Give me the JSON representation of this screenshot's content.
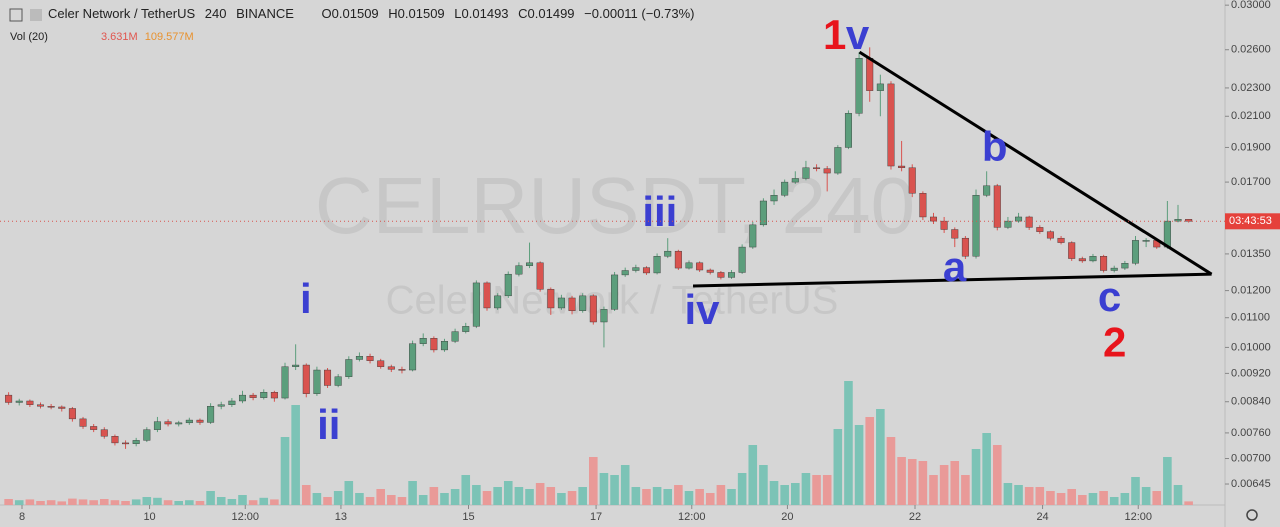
{
  "chart_data": {
    "type": "candlestick",
    "title": "Celer Network / TetherUS",
    "interval": 240,
    "exchange": "BINANCE",
    "change": "−0.00011 (−0.73%)",
    "volume_title": "Vol (20)",
    "volume_value": "3.631M",
    "volume_ma": "109.577M",
    "watermark": "CELRUSDT, 240",
    "watermark_subtitle": "Celer Network / TetherUS",
    "countdown": "03:43:53",
    "ohlc_labels": [
      "O",
      "H",
      "L",
      "C"
    ],
    "log_scale": true,
    "grid": false,
    "up_color": "#5c9e7c",
    "down_color": "#d9534f",
    "volume_up_color": "#7cc3b6",
    "volume_down_color": "#e99a98",
    "x_start": 7.79,
    "xlim": [
      7.655,
      26.86
    ],
    "xticks": [
      8,
      10,
      {
        "value": 11.5,
        "label": "12:00"
      },
      13,
      15,
      17,
      {
        "value": 18.5,
        "label": "12:00"
      },
      20,
      22,
      24,
      {
        "value": 25.5,
        "label": "12:00"
      }
    ],
    "ylim": [
      0.00603,
      0.0305
    ],
    "yticks": [
      {
        "value": 0.03,
        "label": "0.03000"
      },
      {
        "value": 0.026,
        "label": "0.02600"
      },
      {
        "value": 0.023,
        "label": "0.02300"
      },
      {
        "value": 0.021,
        "label": "0.02100"
      },
      {
        "value": 0.019,
        "label": "0.01900"
      },
      {
        "value": 0.017,
        "label": "0.01700"
      },
      {
        "value": 0.0135,
        "label": "0.01350"
      },
      {
        "value": 0.012,
        "label": "0.01200"
      },
      {
        "value": 0.011,
        "label": "0.01100"
      },
      {
        "value": 0.01,
        "label": "0.01000"
      },
      {
        "value": 0.0092,
        "label": "0.00920"
      },
      {
        "value": 0.0084,
        "label": "0.00840"
      },
      {
        "value": 0.0076,
        "label": "0.00760"
      },
      {
        "value": 0.007,
        "label": "0.00700"
      },
      {
        "value": 0.00645,
        "label": "0.00645"
      }
    ],
    "y2lim": [
      0,
      400
    ],
    "ohlc": [
      [
        0.00858,
        0.00866,
        0.00832,
        0.00838
      ],
      [
        0.00838,
        0.00848,
        0.0083,
        0.00842
      ],
      [
        0.00842,
        0.00846,
        0.00826,
        0.00832
      ],
      [
        0.00832,
        0.00838,
        0.00822,
        0.00828
      ],
      [
        0.00828,
        0.00834,
        0.0082,
        0.00826
      ],
      [
        0.00826,
        0.0083,
        0.00814,
        0.00822
      ],
      [
        0.00822,
        0.00826,
        0.00788,
        0.00795
      ],
      [
        0.00795,
        0.008,
        0.0077,
        0.00776
      ],
      [
        0.00776,
        0.00782,
        0.00762,
        0.00768
      ],
      [
        0.00768,
        0.00774,
        0.00746,
        0.00752
      ],
      [
        0.00752,
        0.00756,
        0.0073,
        0.00736
      ],
      [
        0.00736,
        0.00742,
        0.00722,
        0.00734
      ],
      [
        0.00734,
        0.00748,
        0.00728,
        0.00742
      ],
      [
        0.00742,
        0.00774,
        0.00738,
        0.00768
      ],
      [
        0.00768,
        0.008,
        0.00762,
        0.00788
      ],
      [
        0.00788,
        0.00794,
        0.00776,
        0.00782
      ],
      [
        0.00782,
        0.0079,
        0.00776,
        0.00785
      ],
      [
        0.00785,
        0.00798,
        0.0078,
        0.00792
      ],
      [
        0.00792,
        0.00796,
        0.0078,
        0.00786
      ],
      [
        0.00786,
        0.00836,
        0.00782,
        0.00828
      ],
      [
        0.00828,
        0.0084,
        0.0082,
        0.00832
      ],
      [
        0.00832,
        0.0085,
        0.00826,
        0.00842
      ],
      [
        0.00842,
        0.0087,
        0.00836,
        0.00858
      ],
      [
        0.00858,
        0.00864,
        0.00844,
        0.00851
      ],
      [
        0.00851,
        0.00874,
        0.00846,
        0.00866
      ],
      [
        0.00866,
        0.0087,
        0.0084,
        0.0085
      ],
      [
        0.0085,
        0.00952,
        0.00846,
        0.0094
      ],
      [
        0.0094,
        0.0101,
        0.0093,
        0.00945
      ],
      [
        0.00945,
        0.0095,
        0.00852,
        0.00862
      ],
      [
        0.00862,
        0.0094,
        0.00856,
        0.0093
      ],
      [
        0.0093,
        0.00936,
        0.00878,
        0.00885
      ],
      [
        0.00885,
        0.00918,
        0.0088,
        0.0091
      ],
      [
        0.0091,
        0.00972,
        0.00904,
        0.00962
      ],
      [
        0.00962,
        0.00984,
        0.00956,
        0.00972
      ],
      [
        0.00972,
        0.0098,
        0.0095,
        0.00958
      ],
      [
        0.00958,
        0.00964,
        0.00934,
        0.0094
      ],
      [
        0.0094,
        0.00946,
        0.00924,
        0.00932
      ],
      [
        0.00932,
        0.0094,
        0.0092,
        0.0093
      ],
      [
        0.0093,
        0.01022,
        0.00926,
        0.01012
      ],
      [
        0.01012,
        0.01046,
        0.01004,
        0.0103
      ],
      [
        0.0103,
        0.01036,
        0.00984,
        0.00992
      ],
      [
        0.00992,
        0.01028,
        0.00986,
        0.0102
      ],
      [
        0.0102,
        0.01062,
        0.01014,
        0.01052
      ],
      [
        0.01052,
        0.01082,
        0.01046,
        0.0107
      ],
      [
        0.0107,
        0.0124,
        0.01064,
        0.0123
      ],
      [
        0.0123,
        0.01236,
        0.01125,
        0.01135
      ],
      [
        0.01135,
        0.0119,
        0.01128,
        0.0118
      ],
      [
        0.0118,
        0.01276,
        0.01172,
        0.01265
      ],
      [
        0.01265,
        0.01314,
        0.01256,
        0.013
      ],
      [
        0.013,
        0.014,
        0.0129,
        0.01312
      ],
      [
        0.01312,
        0.01318,
        0.01196,
        0.01205
      ],
      [
        0.01205,
        0.01212,
        0.0111,
        0.01135
      ],
      [
        0.01135,
        0.01184,
        0.01128,
        0.01172
      ],
      [
        0.01172,
        0.0118,
        0.01112,
        0.01125
      ],
      [
        0.01125,
        0.0119,
        0.01118,
        0.0118
      ],
      [
        0.0118,
        0.01186,
        0.01076,
        0.01085
      ],
      [
        0.01085,
        0.0114,
        0.01,
        0.0113
      ],
      [
        0.0113,
        0.01274,
        0.01124,
        0.01262
      ],
      [
        0.01262,
        0.01292,
        0.01254,
        0.0128
      ],
      [
        0.0128,
        0.01304,
        0.01272,
        0.01292
      ],
      [
        0.01292,
        0.01298,
        0.01262,
        0.0127
      ],
      [
        0.0127,
        0.01352,
        0.01264,
        0.0134
      ],
      [
        0.0134,
        0.0142,
        0.01332,
        0.01362
      ],
      [
        0.01362,
        0.01368,
        0.01282,
        0.0129
      ],
      [
        0.0129,
        0.01322,
        0.01284,
        0.01312
      ],
      [
        0.01312,
        0.01318,
        0.01274,
        0.01282
      ],
      [
        0.01282,
        0.01288,
        0.01264,
        0.01272
      ],
      [
        0.01272,
        0.01278,
        0.01244,
        0.01252
      ],
      [
        0.01252,
        0.01282,
        0.01246,
        0.01272
      ],
      [
        0.01272,
        0.01392,
        0.01266,
        0.0138
      ],
      [
        0.0138,
        0.01496,
        0.01372,
        0.01482
      ],
      [
        0.01482,
        0.01614,
        0.01474,
        0.016
      ],
      [
        0.016,
        0.0166,
        0.0158,
        0.0163
      ],
      [
        0.0163,
        0.01714,
        0.0162,
        0.017
      ],
      [
        0.017,
        0.0176,
        0.0169,
        0.0172
      ],
      [
        0.0172,
        0.0182,
        0.0171,
        0.0178
      ],
      [
        0.0178,
        0.018,
        0.0176,
        0.01775
      ],
      [
        0.01775,
        0.0179,
        0.0165,
        0.0175
      ],
      [
        0.0175,
        0.01914,
        0.0174,
        0.019
      ],
      [
        0.019,
        0.0214,
        0.0189,
        0.0212
      ],
      [
        0.0212,
        0.0258,
        0.021,
        0.0253
      ],
      [
        0.0253,
        0.0262,
        0.022,
        0.0228
      ],
      [
        0.0228,
        0.024,
        0.021,
        0.0233
      ],
      [
        0.0233,
        0.0235,
        0.0177,
        0.0179
      ],
      [
        0.0179,
        0.0194,
        0.0176,
        0.0178
      ],
      [
        0.0178,
        0.018,
        0.0162,
        0.0164
      ],
      [
        0.0164,
        0.0165,
        0.01505,
        0.0152
      ],
      [
        0.0152,
        0.0154,
        0.01486,
        0.015
      ],
      [
        0.015,
        0.0152,
        0.01444,
        0.0146
      ],
      [
        0.0146,
        0.0147,
        0.0138,
        0.0142
      ],
      [
        0.0142,
        0.0143,
        0.01328,
        0.0134
      ],
      [
        0.0134,
        0.0166,
        0.0133,
        0.0163
      ],
      [
        0.0163,
        0.0176,
        0.0162,
        0.0168
      ],
      [
        0.0168,
        0.0169,
        0.01456,
        0.0147
      ],
      [
        0.0147,
        0.0152,
        0.01462,
        0.015
      ],
      [
        0.015,
        0.0154,
        0.01492,
        0.0152
      ],
      [
        0.0152,
        0.01526,
        0.01458,
        0.0147
      ],
      [
        0.0147,
        0.0148,
        0.0144,
        0.0145
      ],
      [
        0.0145,
        0.01456,
        0.0141,
        0.0142
      ],
      [
        0.0142,
        0.0143,
        0.01392,
        0.014
      ],
      [
        0.014,
        0.01406,
        0.0132,
        0.0133
      ],
      [
        0.0133,
        0.01338,
        0.01312,
        0.0132
      ],
      [
        0.0132,
        0.0135,
        0.01314,
        0.0134
      ],
      [
        0.0134,
        0.01346,
        0.01272,
        0.0128
      ],
      [
        0.0128,
        0.013,
        0.01272,
        0.0129
      ],
      [
        0.0129,
        0.0132,
        0.01282,
        0.0131
      ],
      [
        0.0131,
        0.0143,
        0.01302,
        0.0141
      ],
      [
        0.0141,
        0.0142,
        0.0138,
        0.0141
      ],
      [
        0.0141,
        0.01416,
        0.01372,
        0.0138
      ],
      [
        0.0138,
        0.016,
        0.01372,
        0.015
      ],
      [
        0.015,
        0.0158,
        0.01494,
        0.01509
      ],
      [
        0.01509,
        0.01509,
        0.01493,
        0.01499
      ]
    ],
    "volume": [
      15,
      12,
      14,
      10,
      12,
      9,
      16,
      14,
      12,
      15,
      12,
      10,
      14,
      20,
      18,
      12,
      10,
      12,
      10,
      35,
      20,
      15,
      25,
      12,
      18,
      14,
      170,
      250,
      50,
      30,
      20,
      35,
      60,
      30,
      20,
      40,
      25,
      20,
      60,
      25,
      45,
      30,
      40,
      75,
      50,
      35,
      45,
      60,
      45,
      40,
      55,
      45,
      30,
      35,
      45,
      120,
      80,
      75,
      100,
      45,
      40,
      45,
      40,
      50,
      35,
      40,
      30,
      50,
      40,
      80,
      150,
      100,
      60,
      50,
      55,
      80,
      75,
      75,
      190,
      310,
      200,
      220,
      240,
      170,
      120,
      115,
      110,
      75,
      100,
      110,
      75,
      140,
      180,
      150,
      55,
      50,
      45,
      45,
      35,
      30,
      40,
      25,
      30,
      35,
      20,
      30,
      70,
      45,
      35,
      120,
      50,
      9
    ],
    "trendlines": [
      {
        "x": [
          21.13,
          26.65
        ],
        "y": [
          0.0258,
          0.01265
        ],
        "color": "#000000"
      },
      {
        "x": [
          18.52,
          26.65
        ],
        "y": [
          0.01218,
          0.01265
        ],
        "color": "#000000"
      }
    ],
    "annotations": [
      {
        "text": "1",
        "x": 20.74,
        "y": 0.02699,
        "color": "#e8141c"
      },
      {
        "text": "v",
        "x": 21.1,
        "y": 0.02699,
        "color": "#3b3fd1"
      },
      {
        "text": "i",
        "x": 12.45,
        "y": 0.01157,
        "color": "#3b3fd1"
      },
      {
        "text": "ii",
        "x": 12.81,
        "y": 0.00772,
        "color": "#3b3fd1"
      },
      {
        "text": "iii",
        "x": 18.0,
        "y": 0.01529,
        "color": "#3b3fd1"
      },
      {
        "text": "iv",
        "x": 18.66,
        "y": 0.01117,
        "color": "#3b3fd1"
      },
      {
        "text": "a",
        "x": 22.62,
        "y": 0.01282,
        "color": "#3b3fd1"
      },
      {
        "text": "b",
        "x": 23.25,
        "y": 0.01884,
        "color": "#3b3fd1"
      },
      {
        "text": "c",
        "x": 25.05,
        "y": 0.01164,
        "color": "#3b3fd1"
      },
      {
        "text": "2",
        "x": 25.13,
        "y": 0.01007,
        "color": "#e8141c"
      }
    ]
  }
}
